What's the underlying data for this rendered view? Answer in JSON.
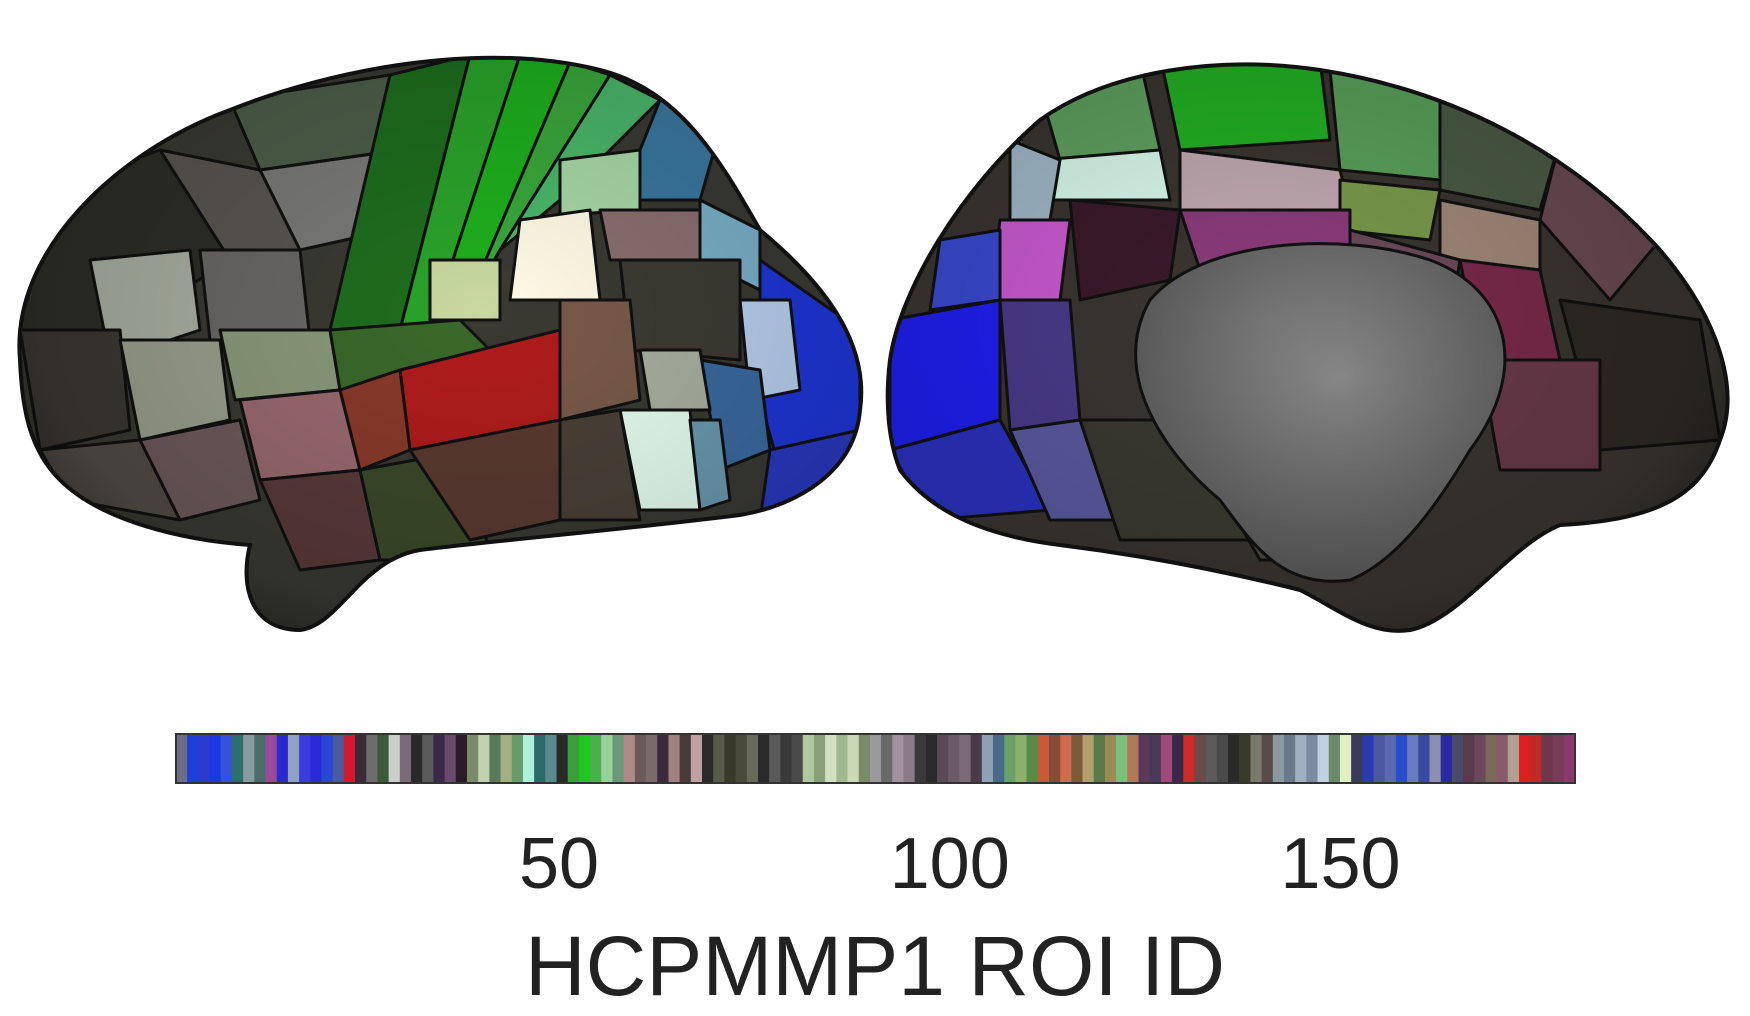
{
  "colorbar": {
    "tick_labels": [
      "50",
      "100",
      "150"
    ],
    "ticks": [
      50,
      100,
      150
    ],
    "range": [
      1,
      180
    ],
    "label": "HCPMMP1 ROI ID",
    "colors": [
      "#6d6d8a",
      "#1f3fd9",
      "#2b3bd0",
      "#1c38e6",
      "#3553d6",
      "#2d6f6a",
      "#8a9aa0",
      "#4a6f6a",
      "#9a4a9a",
      "#2a2ad0",
      "#8fa0c0",
      "#3a3adf",
      "#2a2ad6",
      "#2846d8",
      "#4a5a9a",
      "#d21a2a",
      "#3a2a3a",
      "#6d6d6d",
      "#3a5a3a",
      "#c8d0c8",
      "#7a6a7a",
      "#2a2a2a",
      "#5a5a5a",
      "#3a2a4a",
      "#6a4a6a",
      "#2a1a2a",
      "#7a8a6a",
      "#c0d0b0",
      "#5a7a5a",
      "#a0b080",
      "#6a9a6a",
      "#aef0d8",
      "#2a6a6a",
      "#5a8a8a",
      "#2a2a2a",
      "#3aa03a",
      "#1ec81e",
      "#4ab04a",
      "#9ad09a",
      "#6a9a7a",
      "#b08a8a",
      "#6a5a5a",
      "#7a6a6a",
      "#3a2a3a",
      "#a08080",
      "#4a3a3a",
      "#c0a0a0",
      "#2a2a2a",
      "#5a5a4a",
      "#3a3a2a",
      "#4a4a3a",
      "#6a6a5a",
      "#2a2a2a",
      "#5a5a5a",
      "#3a3a3a",
      "#4a4a4a",
      "#b0c8a0",
      "#8aa07a",
      "#d0e0c0",
      "#a0b890",
      "#c8d8b8",
      "#7a8a6a",
      "#9a9a9a",
      "#6a6a6a",
      "#a090a0",
      "#8a7a8a",
      "#3a3a3a",
      "#2a2a2a",
      "#5a4a5a",
      "#6a5a6a",
      "#7a6a7a",
      "#4a3a4a",
      "#90a0b0",
      "#4a6a8a",
      "#6aa06a",
      "#8ab06a",
      "#5a8a4a",
      "#c85a3a",
      "#8a4a3a",
      "#d06a4a",
      "#7a5a3a",
      "#b0a070",
      "#5a7a4a",
      "#9a8a5a",
      "#7ac07a",
      "#b07a5a",
      "#5a3a5a",
      "#4a3a5a",
      "#a04a7a",
      "#3a2a4a",
      "#d02a2a",
      "#6a4a4a",
      "#5a5a5a",
      "#4a4a4a",
      "#2a2a2a",
      "#3a3a2a",
      "#7a7a6a",
      "#5a4a4a",
      "#8a9aa0",
      "#6a7a8a",
      "#a0b0c0",
      "#7a8aa0",
      "#c0d0e0",
      "#6a8a6a",
      "#e0f0c0",
      "#3a3a5a",
      "#2a3ab0",
      "#4a5aa0",
      "#5a6ab0",
      "#2a4ad0",
      "#6a7ac0",
      "#3a4aa0",
      "#8a90b0",
      "#2a2aa0",
      "#4a4a6a",
      "#5a3a4a",
      "#6a4a5a",
      "#7a6a5a",
      "#8a5a6a",
      "#b0a090",
      "#e02020",
      "#c02a2a",
      "#6a3a4a",
      "#7a3a5a",
      "#8a3a6a"
    ]
  }
}
